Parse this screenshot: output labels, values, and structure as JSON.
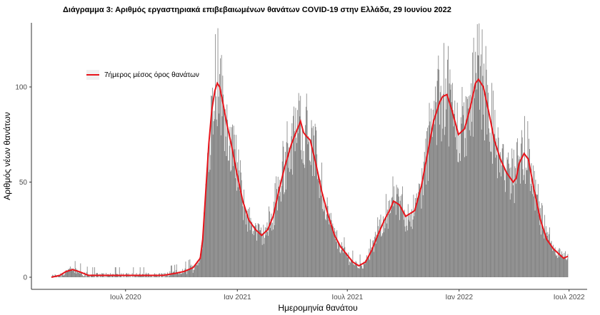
{
  "chart_data": {
    "type": "bar",
    "title": "Διάγραμμα 3: Αριθμός εργαστηριακά επιβεβαιωμένων θανάτων COVID-19 στην Ελλάδα, 29 Ιουνίου 2022",
    "xlabel": "Ημερομηνία θανάτου",
    "ylabel": "Αριθμός νέων θανάτων",
    "x_range": [
      "2020-03-01",
      "2022-06-29"
    ],
    "ylim": [
      0,
      130
    ],
    "y_ticks": [
      0,
      50,
      100
    ],
    "x_ticks": [
      {
        "date": "2020-07-01",
        "label": "Ιουλ 2020"
      },
      {
        "date": "2021-01-01",
        "label": "Ιαν 2021"
      },
      {
        "date": "2021-07-01",
        "label": "Ιουλ 2021"
      },
      {
        "date": "2022-01-01",
        "label": "Ιαν 2022"
      },
      {
        "date": "2022-07-01",
        "label": "Ιουλ 2022"
      }
    ],
    "grid": false,
    "legend": {
      "position": "top-left",
      "entries": [
        "7ήμερος μέσος όρος θανάτων"
      ]
    },
    "colors": {
      "bars": "#7f7f7f",
      "line": "#e8141b"
    },
    "series": [
      {
        "name": "7ήμερος μέσος όρος θανάτων",
        "type": "line",
        "points": [
          [
            "2020-03-01",
            0
          ],
          [
            "2020-03-15",
            1
          ],
          [
            "2020-03-25",
            3
          ],
          [
            "2020-04-05",
            4
          ],
          [
            "2020-04-15",
            3
          ],
          [
            "2020-05-01",
            1
          ],
          [
            "2020-06-01",
            1
          ],
          [
            "2020-07-01",
            1
          ],
          [
            "2020-08-01",
            1
          ],
          [
            "2020-09-01",
            1
          ],
          [
            "2020-09-20",
            2
          ],
          [
            "2020-10-05",
            3
          ],
          [
            "2020-10-20",
            5
          ],
          [
            "2020-11-01",
            10
          ],
          [
            "2020-11-05",
            20
          ],
          [
            "2020-11-10",
            45
          ],
          [
            "2020-11-15",
            70
          ],
          [
            "2020-11-20",
            88
          ],
          [
            "2020-11-25",
            98
          ],
          [
            "2020-11-29",
            102
          ],
          [
            "2020-12-03",
            100
          ],
          [
            "2020-12-08",
            92
          ],
          [
            "2020-12-15",
            80
          ],
          [
            "2020-12-22",
            70
          ],
          [
            "2020-12-31",
            55
          ],
          [
            "2021-01-10",
            40
          ],
          [
            "2021-01-20",
            30
          ],
          [
            "2021-01-31",
            25
          ],
          [
            "2021-02-10",
            22
          ],
          [
            "2021-02-20",
            25
          ],
          [
            "2021-03-01",
            32
          ],
          [
            "2021-03-10",
            45
          ],
          [
            "2021-03-20",
            58
          ],
          [
            "2021-03-31",
            70
          ],
          [
            "2021-04-10",
            78
          ],
          [
            "2021-04-15",
            82
          ],
          [
            "2021-04-20",
            76
          ],
          [
            "2021-04-25",
            74
          ],
          [
            "2021-05-01",
            72
          ],
          [
            "2021-05-10",
            60
          ],
          [
            "2021-05-20",
            45
          ],
          [
            "2021-05-31",
            32
          ],
          [
            "2021-06-10",
            22
          ],
          [
            "2021-06-20",
            16
          ],
          [
            "2021-06-30",
            12
          ],
          [
            "2021-07-10",
            8
          ],
          [
            "2021-07-20",
            6
          ],
          [
            "2021-07-31",
            8
          ],
          [
            "2021-08-10",
            14
          ],
          [
            "2021-08-20",
            22
          ],
          [
            "2021-08-31",
            30
          ],
          [
            "2021-09-10",
            36
          ],
          [
            "2021-09-15",
            40
          ],
          [
            "2021-09-25",
            38
          ],
          [
            "2021-10-05",
            32
          ],
          [
            "2021-10-20",
            35
          ],
          [
            "2021-10-31",
            48
          ],
          [
            "2021-11-10",
            65
          ],
          [
            "2021-11-20",
            82
          ],
          [
            "2021-11-30",
            92
          ],
          [
            "2021-12-05",
            95
          ],
          [
            "2021-12-12",
            96
          ],
          [
            "2021-12-20",
            88
          ],
          [
            "2021-12-31",
            75
          ],
          [
            "2022-01-10",
            78
          ],
          [
            "2022-01-20",
            90
          ],
          [
            "2022-01-28",
            102
          ],
          [
            "2022-02-02",
            104
          ],
          [
            "2022-02-10",
            100
          ],
          [
            "2022-02-20",
            85
          ],
          [
            "2022-02-28",
            72
          ],
          [
            "2022-03-10",
            62
          ],
          [
            "2022-03-20",
            55
          ],
          [
            "2022-03-31",
            50
          ],
          [
            "2022-04-05",
            52
          ],
          [
            "2022-04-10",
            60
          ],
          [
            "2022-04-18",
            65
          ],
          [
            "2022-04-25",
            62
          ],
          [
            "2022-05-05",
            45
          ],
          [
            "2022-05-15",
            30
          ],
          [
            "2022-05-25",
            20
          ],
          [
            "2022-06-05",
            15
          ],
          [
            "2022-06-15",
            12
          ],
          [
            "2022-06-22",
            10
          ],
          [
            "2022-06-29",
            11
          ]
        ]
      }
    ]
  }
}
